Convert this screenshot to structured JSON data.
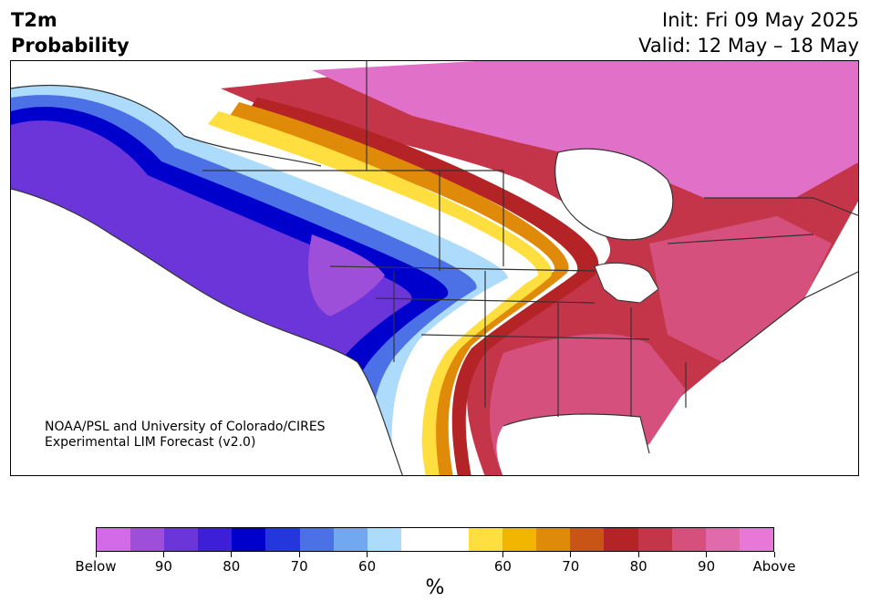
{
  "header": {
    "variable": "T2m",
    "product": "Probability",
    "init": "Init: Fri 09 May 2025",
    "valid": "Valid: 12 May – 18 May"
  },
  "credit": {
    "line1": "NOAA/PSL and University of Colorado/CIRES",
    "line2": "Experimental LIM Forecast (v2.0)"
  },
  "colorbar": {
    "unit": "%",
    "colors": [
      "#d36be8",
      "#9d4fd9",
      "#6b35d9",
      "#3c1fd6",
      "#0000cd",
      "#2337dc",
      "#4c70e5",
      "#72a8f0",
      "#acdbfb",
      "#ffffff",
      "#ffffff",
      "#ffdf40",
      "#f2b500",
      "#e08a0a",
      "#c85516",
      "#b42325",
      "#c43549",
      "#d5507d",
      "#e06aab",
      "#e878d8"
    ],
    "ticks": [
      {
        "label": "Below"
      },
      {
        "label": "90"
      },
      {
        "label": "80"
      },
      {
        "label": "70"
      },
      {
        "label": "60"
      },
      {
        "label": "60"
      },
      {
        "label": "70"
      },
      {
        "label": "80"
      },
      {
        "label": "90"
      },
      {
        "label": "Above"
      }
    ]
  },
  "map": {
    "land_color": "#ffffff",
    "border_color": "#333333"
  }
}
